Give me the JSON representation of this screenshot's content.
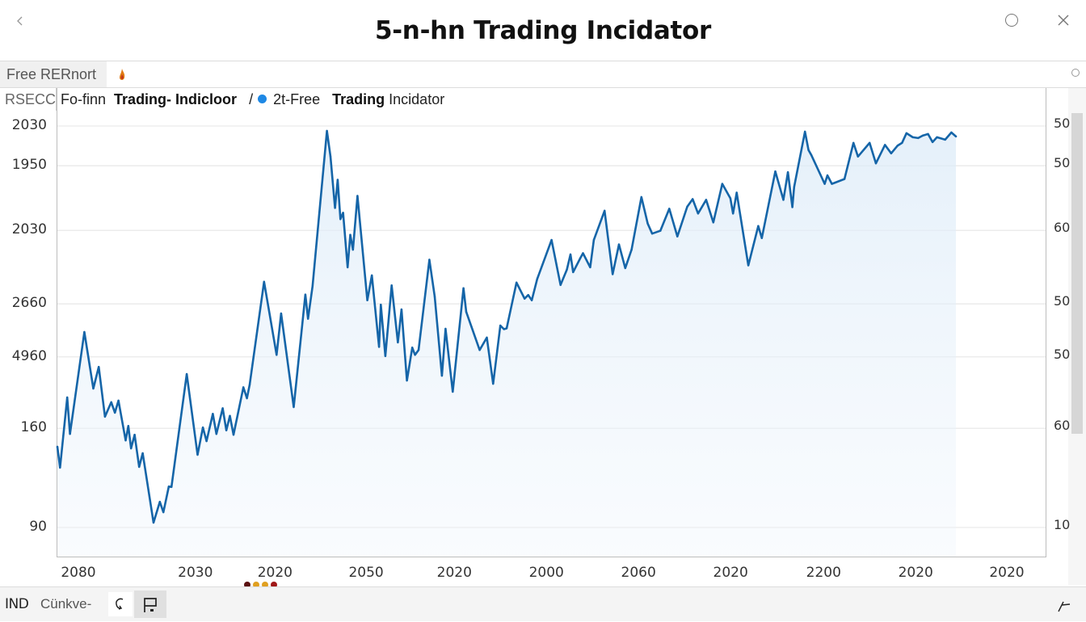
{
  "window": {
    "title": "5-n-hn Trading Incidator",
    "back_label": "<",
    "close_label": "×"
  },
  "tabs": [
    {
      "label": "Free RERnort",
      "active": true
    }
  ],
  "legend": {
    "symbol": "RSECC",
    "series_prefix": "Fo-finn",
    "series_bold": "Trading- Indicloor",
    "separator": "/",
    "series2_prefix": "2t-Free",
    "series2_bold": "Trading",
    "series2_rest": "Incidator",
    "dot_color": "#1e88e5"
  },
  "bottombar": {
    "indicator_label": "IND",
    "curve_label": "Cünkve-"
  },
  "colors": {
    "line": "#1565a8",
    "area_fill": "#eaf3fb",
    "grid": "#e9e9e9",
    "marker_dots": [
      "#5a1010",
      "#e0a020",
      "#e0a020",
      "#a01818"
    ]
  },
  "chart_data": {
    "type": "line",
    "title": "5-n-hn Trading Incidator",
    "xlabel": "",
    "ylabel": "",
    "grid": true,
    "legend_position": "top-left",
    "area_fill": true,
    "y_ticks_left": [
      "2030",
      "1950",
      "2030",
      "2660",
      "4960",
      "160",
      "90"
    ],
    "y_ticks_right": [
      "50",
      "50",
      "60",
      "50",
      "50",
      "60",
      "10"
    ],
    "y_tick_levels": [
      100,
      90.1,
      74.0,
      55.7,
      42.5,
      24.7,
      0
    ],
    "x_ticks": [
      "2080",
      "2030",
      "2020",
      "2050",
      "2020",
      "2000",
      "2060",
      "2020",
      "2200",
      "2020",
      "2020"
    ],
    "x_tick_positions": [
      0.0,
      0.122,
      0.205,
      0.3,
      0.392,
      0.488,
      0.584,
      0.68,
      0.777,
      0.873,
      0.968
    ],
    "value_scale_note": "y values expressed as percent of axis span between lowest (90) and highest (2030) gridline labels",
    "ylim": [
      -7.2,
      108
    ],
    "xlim": [
      0,
      1
    ],
    "series": [
      {
        "name": "Trading Indicator",
        "points": [
          [
            0.0,
            20.1
          ],
          [
            0.003,
            14.9
          ],
          [
            0.011,
            32.4
          ],
          [
            0.014,
            23.3
          ],
          [
            0.03,
            48.7
          ],
          [
            0.04,
            34.6
          ],
          [
            0.046,
            40.0
          ],
          [
            0.053,
            27.6
          ],
          [
            0.06,
            31.2
          ],
          [
            0.064,
            28.6
          ],
          [
            0.068,
            31.6
          ],
          [
            0.076,
            21.7
          ],
          [
            0.079,
            25.3
          ],
          [
            0.082,
            19.7
          ],
          [
            0.086,
            23.1
          ],
          [
            0.091,
            15.1
          ],
          [
            0.095,
            18.5
          ],
          [
            0.107,
            1.2
          ],
          [
            0.114,
            6.4
          ],
          [
            0.118,
            3.8
          ],
          [
            0.124,
            10.2
          ],
          [
            0.127,
            10.1
          ],
          [
            0.144,
            38.2
          ],
          [
            0.156,
            18.1
          ],
          [
            0.162,
            24.9
          ],
          [
            0.166,
            21.5
          ],
          [
            0.173,
            28.3
          ],
          [
            0.177,
            23.3
          ],
          [
            0.184,
            29.7
          ],
          [
            0.188,
            24.2
          ],
          [
            0.192,
            27.8
          ],
          [
            0.196,
            23.1
          ],
          [
            0.207,
            34.9
          ],
          [
            0.211,
            32.2
          ],
          [
            0.214,
            35.6
          ],
          [
            0.23,
            61.2
          ],
          [
            0.244,
            43.0
          ],
          [
            0.249,
            53.3
          ],
          [
            0.263,
            30.0
          ],
          [
            0.276,
            58.0
          ],
          [
            0.279,
            52.0
          ],
          [
            0.284,
            60.1
          ],
          [
            0.3,
            98.8
          ],
          [
            0.304,
            92.4
          ],
          [
            0.309,
            79.6
          ],
          [
            0.312,
            86.6
          ],
          [
            0.315,
            76.8
          ],
          [
            0.318,
            78.4
          ],
          [
            0.323,
            64.8
          ],
          [
            0.326,
            72.9
          ],
          [
            0.329,
            69.2
          ],
          [
            0.334,
            82.6
          ],
          [
            0.345,
            56.6
          ],
          [
            0.35,
            62.8
          ],
          [
            0.358,
            45.0
          ],
          [
            0.36,
            55.5
          ],
          [
            0.365,
            42.7
          ],
          [
            0.372,
            60.3
          ],
          [
            0.379,
            46.1
          ],
          [
            0.383,
            54.3
          ],
          [
            0.389,
            36.6
          ],
          [
            0.395,
            44.8
          ],
          [
            0.398,
            43.0
          ],
          [
            0.402,
            44.2
          ],
          [
            0.414,
            66.7
          ],
          [
            0.42,
            57.5
          ],
          [
            0.428,
            37.8
          ],
          [
            0.432,
            49.5
          ],
          [
            0.44,
            33.8
          ],
          [
            0.452,
            59.6
          ],
          [
            0.455,
            53.7
          ],
          [
            0.47,
            44.2
          ],
          [
            0.478,
            47.3
          ],
          [
            0.485,
            35.8
          ],
          [
            0.493,
            50.3
          ],
          [
            0.497,
            49.4
          ],
          [
            0.5,
            49.6
          ],
          [
            0.511,
            61.0
          ],
          [
            0.52,
            57.0
          ],
          [
            0.524,
            57.9
          ],
          [
            0.528,
            56.6
          ],
          [
            0.534,
            61.9
          ],
          [
            0.55,
            71.6
          ],
          [
            0.56,
            60.4
          ],
          [
            0.567,
            64.2
          ],
          [
            0.571,
            68.0
          ],
          [
            0.574,
            63.6
          ],
          [
            0.582,
            67.1
          ],
          [
            0.585,
            68.3
          ],
          [
            0.593,
            64.8
          ],
          [
            0.597,
            71.6
          ],
          [
            0.609,
            78.9
          ],
          [
            0.618,
            63.1
          ],
          [
            0.625,
            70.5
          ],
          [
            0.632,
            64.6
          ],
          [
            0.639,
            69.2
          ],
          [
            0.65,
            82.3
          ],
          [
            0.657,
            75.7
          ],
          [
            0.662,
            73.2
          ],
          [
            0.671,
            73.9
          ],
          [
            0.681,
            79.4
          ],
          [
            0.69,
            72.5
          ],
          [
            0.701,
            79.9
          ],
          [
            0.707,
            81.8
          ],
          [
            0.713,
            78.2
          ],
          [
            0.722,
            81.6
          ],
          [
            0.73,
            76.0
          ],
          [
            0.74,
            85.6
          ],
          [
            0.749,
            82.0
          ],
          [
            0.752,
            78.2
          ],
          [
            0.756,
            83.4
          ],
          [
            0.769,
            65.3
          ],
          [
            0.78,
            75.1
          ],
          [
            0.784,
            72.1
          ],
          [
            0.799,
            88.7
          ],
          [
            0.808,
            81.6
          ],
          [
            0.813,
            88.5
          ],
          [
            0.818,
            79.8
          ],
          [
            0.82,
            84.8
          ],
          [
            0.832,
            98.6
          ],
          [
            0.836,
            94.0
          ],
          [
            0.839,
            92.8
          ],
          [
            0.854,
            85.6
          ],
          [
            0.857,
            87.7
          ],
          [
            0.862,
            85.6
          ],
          [
            0.876,
            86.8
          ],
          [
            0.886,
            95.8
          ],
          [
            0.891,
            92.4
          ],
          [
            0.904,
            95.8
          ],
          [
            0.911,
            90.7
          ],
          [
            0.921,
            95.3
          ],
          [
            0.928,
            93.2
          ],
          [
            0.935,
            95.1
          ],
          [
            0.94,
            95.8
          ],
          [
            0.945,
            98.2
          ],
          [
            0.952,
            97.2
          ],
          [
            0.958,
            97.0
          ],
          [
            0.963,
            97.6
          ],
          [
            0.969,
            98.0
          ],
          [
            0.974,
            96.0
          ],
          [
            0.979,
            97.2
          ],
          [
            0.988,
            96.6
          ],
          [
            0.995,
            98.4
          ],
          [
            1.0,
            97.4
          ]
        ]
      }
    ]
  }
}
